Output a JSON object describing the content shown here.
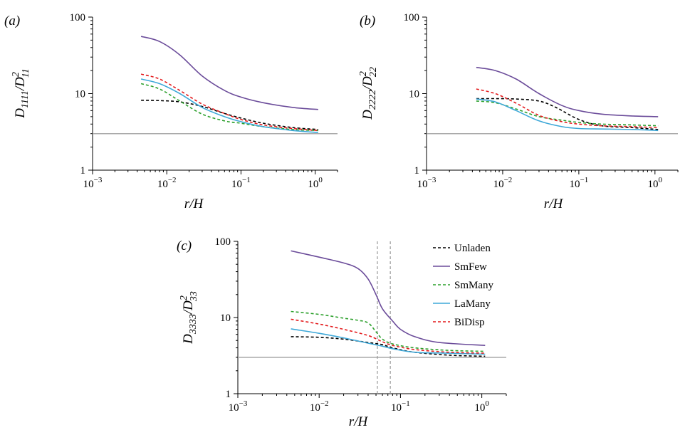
{
  "chart_data": [
    {
      "panel": "(a)",
      "type": "line",
      "xscale": "log",
      "yscale": "log",
      "xlim": [
        0.001,
        2
      ],
      "ylim": [
        1,
        100
      ],
      "xlabel": "r/H",
      "ylabel_main": "D",
      "ylabel_sub_num": "1111",
      "ylabel_mid": "/D",
      "ylabel_sup": "2",
      "ylabel_sub_den": "11",
      "reference_y": 3,
      "series": [
        {
          "name": "Unladen",
          "x": [
            0.0045,
            0.008,
            0.015,
            0.03,
            0.06,
            0.1,
            0.2,
            0.5,
            1.1
          ],
          "y": [
            8.2,
            8.1,
            7.8,
            6.8,
            5.5,
            4.8,
            4.1,
            3.6,
            3.4
          ]
        },
        {
          "name": "SmFew",
          "x": [
            0.0045,
            0.008,
            0.015,
            0.03,
            0.06,
            0.1,
            0.2,
            0.5,
            1.1
          ],
          "y": [
            56,
            48,
            32,
            17,
            11,
            9,
            7.6,
            6.6,
            6.2
          ]
        },
        {
          "name": "SmMany",
          "x": [
            0.0045,
            0.008,
            0.015,
            0.03,
            0.06,
            0.1,
            0.2,
            0.5,
            1.1
          ],
          "y": [
            13.5,
            11.5,
            8,
            5.4,
            4.4,
            4.1,
            3.7,
            3.4,
            3.3
          ]
        },
        {
          "name": "LaMany",
          "x": [
            0.0045,
            0.008,
            0.015,
            0.03,
            0.06,
            0.1,
            0.2,
            0.5,
            1.1
          ],
          "y": [
            15.5,
            13.5,
            10,
            6.6,
            5.0,
            4.3,
            3.7,
            3.3,
            3.1
          ]
        },
        {
          "name": "BiDisp",
          "x": [
            0.0045,
            0.008,
            0.015,
            0.03,
            0.06,
            0.1,
            0.2,
            0.5,
            1.1
          ],
          "y": [
            18,
            15.5,
            11,
            7.3,
            5.5,
            4.6,
            3.9,
            3.5,
            3.3
          ]
        }
      ]
    },
    {
      "panel": "(b)",
      "type": "line",
      "xscale": "log",
      "yscale": "log",
      "xlim": [
        0.001,
        2
      ],
      "ylim": [
        1,
        100
      ],
      "xlabel": "r/H",
      "ylabel_main": "D",
      "ylabel_sub_num": "2222",
      "ylabel_mid": "/D",
      "ylabel_sup": "2",
      "ylabel_sub_den": "22",
      "reference_y": 3,
      "series": [
        {
          "name": "Unladen",
          "x": [
            0.0045,
            0.008,
            0.015,
            0.03,
            0.05,
            0.1,
            0.2,
            0.5,
            1.1
          ],
          "y": [
            8.6,
            8.6,
            8.5,
            8.0,
            6.6,
            4.6,
            3.8,
            3.6,
            3.4
          ]
        },
        {
          "name": "SmFew",
          "x": [
            0.0045,
            0.008,
            0.015,
            0.03,
            0.06,
            0.1,
            0.2,
            0.5,
            1.1
          ],
          "y": [
            22,
            20,
            15.5,
            10,
            7,
            6,
            5.4,
            5.1,
            5.0
          ]
        },
        {
          "name": "SmMany",
          "x": [
            0.0045,
            0.008,
            0.015,
            0.03,
            0.06,
            0.1,
            0.2,
            0.5,
            1.1
          ],
          "y": [
            8.0,
            7.6,
            6.3,
            5.0,
            4.5,
            4.2,
            4.0,
            3.9,
            3.8
          ]
        },
        {
          "name": "LaMany",
          "x": [
            0.0045,
            0.008,
            0.015,
            0.03,
            0.06,
            0.1,
            0.2,
            0.5,
            1.1
          ],
          "y": [
            8.5,
            7.8,
            6.0,
            4.4,
            3.7,
            3.5,
            3.45,
            3.4,
            3.3
          ]
        },
        {
          "name": "BiDisp",
          "x": [
            0.0045,
            0.008,
            0.015,
            0.03,
            0.06,
            0.1,
            0.2,
            0.5,
            1.1
          ],
          "y": [
            11.5,
            10,
            7.5,
            5.2,
            4.3,
            4.0,
            3.8,
            3.7,
            3.6
          ]
        }
      ]
    },
    {
      "panel": "(c)",
      "type": "line",
      "xscale": "log",
      "yscale": "log",
      "xlim": [
        0.001,
        2
      ],
      "ylim": [
        1,
        100
      ],
      "xlabel": "r/H",
      "ylabel_main": "D",
      "ylabel_sub_num": "3333",
      "ylabel_mid": "/D",
      "ylabel_sup": "2",
      "ylabel_sub_den": "33",
      "reference_y": 3,
      "vertical_lines_x": [
        0.052,
        0.075
      ],
      "legend": "right, outside plot",
      "series": [
        {
          "name": "Unladen",
          "x": [
            0.0045,
            0.01,
            0.02,
            0.04,
            0.06,
            0.08,
            0.15,
            0.4,
            1.1
          ],
          "y": [
            5.6,
            5.5,
            5.2,
            4.7,
            4.4,
            4.0,
            3.5,
            3.2,
            3.1
          ]
        },
        {
          "name": "SmFew",
          "x": [
            0.0045,
            0.01,
            0.02,
            0.03,
            0.04,
            0.05,
            0.06,
            0.08,
            0.1,
            0.15,
            0.3,
            1.1
          ],
          "y": [
            75,
            62,
            52,
            44,
            32,
            20,
            13,
            9,
            7,
            5.6,
            4.7,
            4.3
          ]
        },
        {
          "name": "SmMany",
          "x": [
            0.0045,
            0.01,
            0.02,
            0.03,
            0.04,
            0.05,
            0.06,
            0.08,
            0.15,
            0.4,
            1.1
          ],
          "y": [
            12,
            11,
            9.8,
            9.2,
            8.5,
            6.5,
            5.2,
            4.5,
            4.0,
            3.7,
            3.6
          ]
        },
        {
          "name": "LaMany",
          "x": [
            0.0045,
            0.01,
            0.02,
            0.04,
            0.06,
            0.08,
            0.15,
            0.4,
            1.1
          ],
          "y": [
            7.1,
            6.2,
            5.4,
            4.6,
            4.2,
            3.9,
            3.5,
            3.4,
            3.3
          ]
        },
        {
          "name": "BiDisp",
          "x": [
            0.0045,
            0.01,
            0.02,
            0.04,
            0.06,
            0.08,
            0.15,
            0.4,
            1.1
          ],
          "y": [
            9.5,
            8.2,
            7.0,
            5.8,
            4.8,
            4.3,
            3.8,
            3.5,
            3.4
          ]
        }
      ]
    }
  ],
  "styles": {
    "Unladen": {
      "color": "#000000",
      "dash": "4 3"
    },
    "SmFew": {
      "color": "#6b4c9a",
      "dash": ""
    },
    "SmMany": {
      "color": "#2ca02c",
      "dash": "4 3"
    },
    "LaMany": {
      "color": "#3ea8d8",
      "dash": ""
    },
    "BiDisp": {
      "color": "#e31a1c",
      "dash": "4 3"
    }
  }
}
